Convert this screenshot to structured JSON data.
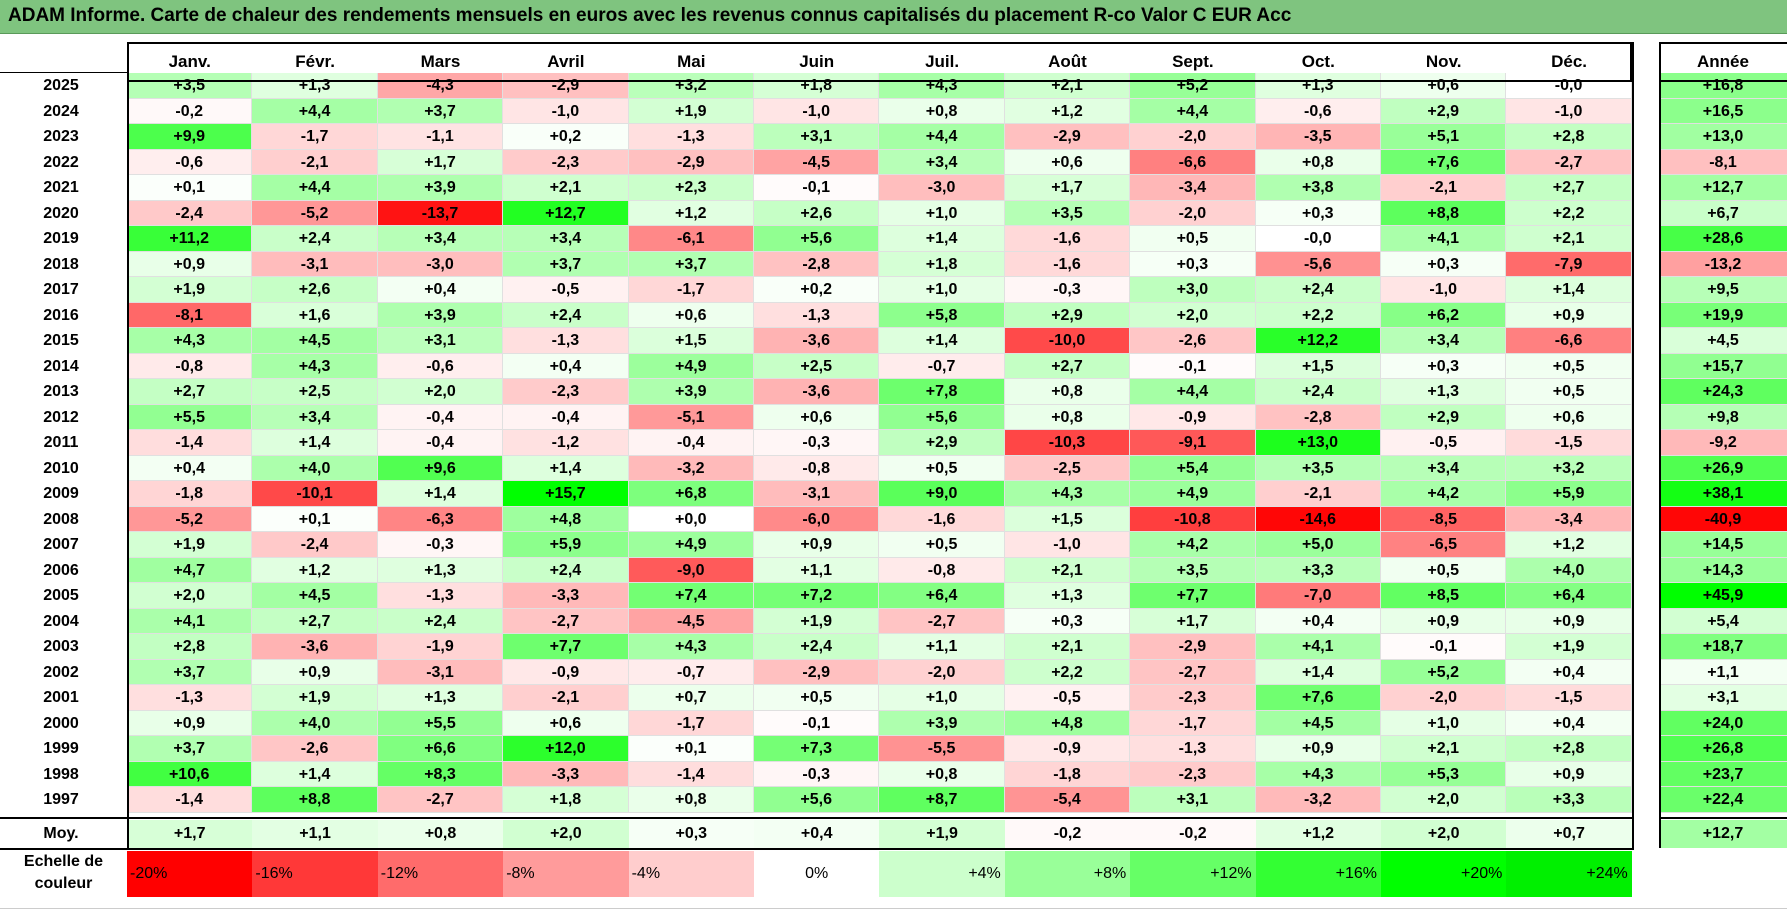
{
  "title": "ADAM Informe. Carte de chaleur des rendements mensuels en euros avec les revenus connus capitalisés du placement R-co Valor C EUR Acc",
  "chart_data": {
    "type": "heatmap",
    "title": "ADAM Informe. Carte de chaleur des rendements mensuels en euros avec les revenus connus capitalisés du placement R-co Valor C EUR Acc",
    "months": [
      "Janv.",
      "Févr.",
      "Mars",
      "Avril",
      "Mai",
      "Juin",
      "Juil.",
      "Août",
      "Sept.",
      "Oct.",
      "Nov.",
      "Déc."
    ],
    "year_header": "Année",
    "rows": [
      {
        "year": "2025",
        "values": [
          "+3,5",
          "+1,3",
          "-4,3",
          "-2,9",
          "+3,2",
          "+1,8",
          "+4,3",
          "+2,1",
          "+5,2",
          "+1,3",
          "+0,6",
          "-0,0"
        ],
        "annual": "+16,8"
      },
      {
        "year": "2024",
        "values": [
          "-0,2",
          "+4,4",
          "+3,7",
          "-1,0",
          "+1,9",
          "-1,0",
          "+0,8",
          "+1,2",
          "+4,4",
          "-0,6",
          "+2,9",
          "-1,0"
        ],
        "annual": "+16,5"
      },
      {
        "year": "2023",
        "values": [
          "+9,9",
          "-1,7",
          "-1,1",
          "+0,2",
          "-1,3",
          "+3,1",
          "+4,4",
          "-2,9",
          "-2,0",
          "-3,5",
          "+5,1",
          "+2,8"
        ],
        "annual": "+13,0"
      },
      {
        "year": "2022",
        "values": [
          "-0,6",
          "-2,1",
          "+1,7",
          "-2,3",
          "-2,9",
          "-4,5",
          "+3,4",
          "+0,6",
          "-6,6",
          "+0,8",
          "+7,6",
          "-2,7"
        ],
        "annual": "-8,1"
      },
      {
        "year": "2021",
        "values": [
          "+0,1",
          "+4,4",
          "+3,9",
          "+2,1",
          "+2,3",
          "-0,1",
          "-3,0",
          "+1,7",
          "-3,4",
          "+3,8",
          "-2,1",
          "+2,7"
        ],
        "annual": "+12,7"
      },
      {
        "year": "2020",
        "values": [
          "-2,4",
          "-5,2",
          "-13,7",
          "+12,7",
          "+1,2",
          "+2,6",
          "+1,0",
          "+3,5",
          "-2,0",
          "+0,3",
          "+8,8",
          "+2,2"
        ],
        "annual": "+6,7"
      },
      {
        "year": "2019",
        "values": [
          "+11,2",
          "+2,4",
          "+3,4",
          "+3,4",
          "-6,1",
          "+5,6",
          "+1,4",
          "-1,6",
          "+0,5",
          "-0,0",
          "+4,1",
          "+2,1"
        ],
        "annual": "+28,6"
      },
      {
        "year": "2018",
        "values": [
          "+0,9",
          "-3,1",
          "-3,0",
          "+3,7",
          "+3,7",
          "-2,8",
          "+1,8",
          "-1,6",
          "+0,3",
          "-5,6",
          "+0,3",
          "-7,9"
        ],
        "annual": "-13,2"
      },
      {
        "year": "2017",
        "values": [
          "+1,9",
          "+2,6",
          "+0,4",
          "-0,5",
          "-1,7",
          "+0,2",
          "+1,0",
          "-0,3",
          "+3,0",
          "+2,4",
          "-1,0",
          "+1,4"
        ],
        "annual": "+9,5"
      },
      {
        "year": "2016",
        "values": [
          "-8,1",
          "+1,6",
          "+3,9",
          "+2,4",
          "+0,6",
          "-1,3",
          "+5,8",
          "+2,9",
          "+2,0",
          "+2,2",
          "+6,2",
          "+0,9"
        ],
        "annual": "+19,9"
      },
      {
        "year": "2015",
        "values": [
          "+4,3",
          "+4,5",
          "+3,1",
          "-1,3",
          "+1,5",
          "-3,6",
          "+1,4",
          "-10,0",
          "-2,6",
          "+12,2",
          "+3,4",
          "-6,6"
        ],
        "annual": "+4,5"
      },
      {
        "year": "2014",
        "values": [
          "-0,8",
          "+4,3",
          "-0,6",
          "+0,4",
          "+4,9",
          "+2,5",
          "-0,7",
          "+2,7",
          "-0,1",
          "+1,5",
          "+0,3",
          "+0,5"
        ],
        "annual": "+15,7"
      },
      {
        "year": "2013",
        "values": [
          "+2,7",
          "+2,5",
          "+2,0",
          "-2,3",
          "+3,9",
          "-3,6",
          "+7,8",
          "+0,8",
          "+4,4",
          "+2,4",
          "+1,3",
          "+0,5"
        ],
        "annual": "+24,3"
      },
      {
        "year": "2012",
        "values": [
          "+5,5",
          "+3,4",
          "-0,4",
          "-0,4",
          "-5,1",
          "+0,6",
          "+5,6",
          "+0,8",
          "-0,9",
          "-2,8",
          "+2,9",
          "+0,6"
        ],
        "annual": "+9,8"
      },
      {
        "year": "2011",
        "values": [
          "-1,4",
          "+1,4",
          "-0,4",
          "-1,2",
          "-0,4",
          "-0,3",
          "+2,9",
          "-10,3",
          "-9,1",
          "+13,0",
          "-0,5",
          "-1,5"
        ],
        "annual": "-9,2"
      },
      {
        "year": "2010",
        "values": [
          "+0,4",
          "+4,0",
          "+9,6",
          "+1,4",
          "-3,2",
          "-0,8",
          "+0,5",
          "-2,5",
          "+5,4",
          "+3,5",
          "+3,4",
          "+3,2"
        ],
        "annual": "+26,9"
      },
      {
        "year": "2009",
        "values": [
          "-1,8",
          "-10,1",
          "+1,4",
          "+15,7",
          "+6,8",
          "-3,1",
          "+9,0",
          "+4,3",
          "+4,9",
          "-2,1",
          "+4,2",
          "+5,9"
        ],
        "annual": "+38,1"
      },
      {
        "year": "2008",
        "values": [
          "-5,2",
          "+0,1",
          "-6,3",
          "+4,8",
          "+0,0",
          "-6,0",
          "-1,6",
          "+1,5",
          "-10,8",
          "-14,6",
          "-8,5",
          "-3,4"
        ],
        "annual": "-40,9"
      },
      {
        "year": "2007",
        "values": [
          "+1,9",
          "-2,4",
          "-0,3",
          "+5,9",
          "+4,9",
          "+0,9",
          "+0,5",
          "-1,0",
          "+4,2",
          "+5,0",
          "-6,5",
          "+1,2"
        ],
        "annual": "+14,5"
      },
      {
        "year": "2006",
        "values": [
          "+4,7",
          "+1,2",
          "+1,3",
          "+2,4",
          "-9,0",
          "+1,1",
          "-0,8",
          "+2,1",
          "+3,5",
          "+3,3",
          "+0,5",
          "+4,0"
        ],
        "annual": "+14,3"
      },
      {
        "year": "2005",
        "values": [
          "+2,0",
          "+4,5",
          "-1,3",
          "-3,3",
          "+7,4",
          "+7,2",
          "+6,4",
          "+1,3",
          "+7,7",
          "-7,0",
          "+8,5",
          "+6,4"
        ],
        "annual": "+45,9"
      },
      {
        "year": "2004",
        "values": [
          "+4,1",
          "+2,7",
          "+2,4",
          "-2,7",
          "-4,5",
          "+1,9",
          "-2,7",
          "+0,3",
          "+1,7",
          "+0,4",
          "+0,9",
          "+0,9"
        ],
        "annual": "+5,4"
      },
      {
        "year": "2003",
        "values": [
          "+2,8",
          "-3,6",
          "-1,9",
          "+7,7",
          "+4,3",
          "+2,4",
          "+1,1",
          "+2,1",
          "-2,9",
          "+4,1",
          "-0,1",
          "+1,9"
        ],
        "annual": "+18,7"
      },
      {
        "year": "2002",
        "values": [
          "+3,7",
          "+0,9",
          "-3,1",
          "-0,9",
          "-0,7",
          "-2,9",
          "-2,0",
          "+2,2",
          "-2,7",
          "+1,4",
          "+5,2",
          "+0,4"
        ],
        "annual": "+1,1"
      },
      {
        "year": "2001",
        "values": [
          "-1,3",
          "+1,9",
          "+1,3",
          "-2,1",
          "+0,7",
          "+0,5",
          "+1,0",
          "-0,5",
          "-2,3",
          "+7,6",
          "-2,0",
          "-1,5"
        ],
        "annual": "+3,1"
      },
      {
        "year": "2000",
        "values": [
          "+0,9",
          "+4,0",
          "+5,5",
          "+0,6",
          "-1,7",
          "-0,1",
          "+3,9",
          "+4,8",
          "-1,7",
          "+4,5",
          "+1,0",
          "+0,4"
        ],
        "annual": "+24,0"
      },
      {
        "year": "1999",
        "values": [
          "+3,7",
          "-2,6",
          "+6,6",
          "+12,0",
          "+0,1",
          "+7,3",
          "-5,5",
          "-0,9",
          "-1,3",
          "+0,9",
          "+2,1",
          "+2,8"
        ],
        "annual": "+26,8"
      },
      {
        "year": "1998",
        "values": [
          "+10,6",
          "+1,4",
          "+8,3",
          "-3,3",
          "-1,4",
          "-0,3",
          "+0,8",
          "-1,8",
          "-2,3",
          "+4,3",
          "+5,3",
          "+0,9"
        ],
        "annual": "+23,7"
      },
      {
        "year": "1997",
        "values": [
          "-1,4",
          "+8,8",
          "-2,7",
          "+1,8",
          "+0,8",
          "+5,6",
          "+8,7",
          "-5,4",
          "+3,1",
          "-3,2",
          "+2,0",
          "+3,3"
        ],
        "annual": "+22,4"
      }
    ],
    "average": {
      "label": "Moy.",
      "values": [
        "+1,7",
        "+1,1",
        "+0,8",
        "+2,0",
        "+0,3",
        "+0,4",
        "+1,9",
        "-0,2",
        "-0,2",
        "+1,2",
        "+2,0",
        "+0,7"
      ],
      "annual": "+12,7"
    },
    "scale": {
      "label": "Echelle de couleur",
      "entries": [
        "-20%",
        "-16%",
        "-12%",
        "-8%",
        "-4%",
        "0%",
        "+4%",
        "+8%",
        "+12%",
        "+16%",
        "+20%",
        "+24%"
      ],
      "values": [
        -20,
        -16,
        -12,
        -8,
        -4,
        0,
        4,
        8,
        12,
        16,
        20,
        24
      ],
      "colors": [
        "#ff0000",
        "#ff3838",
        "#ff6b6b",
        "#ff9b9b",
        "#ffcdcd",
        "#ffffff",
        "#ccffcc",
        "#99ff99",
        "#66ff66",
        "#33ff33",
        "#00ff00",
        "#00f000"
      ]
    }
  }
}
